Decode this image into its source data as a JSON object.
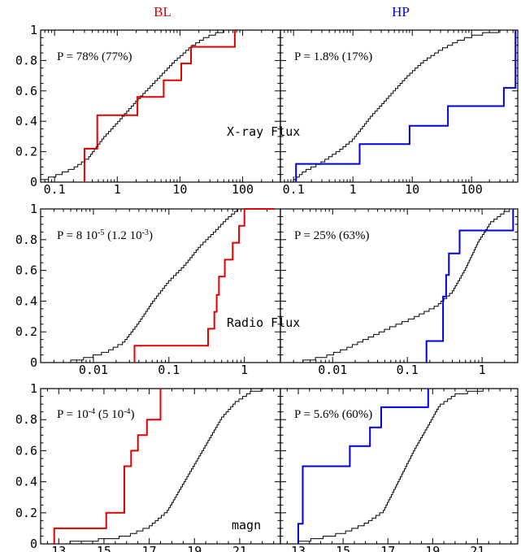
{
  "column_titles": [
    {
      "text": "BL",
      "color": "#e00000"
    },
    {
      "text": "HP",
      "color": "#0000e0"
    }
  ],
  "row_labels": [
    "X-ray Flux",
    "Radio Flux",
    "magn"
  ],
  "colors": {
    "sample": "#000000",
    "BL": "#e00000",
    "HP": "#0000e0"
  },
  "chart_data": [
    {
      "type": "line",
      "panel": "X-ray Flux / BL",
      "xscale": "log",
      "xlim": [
        0.06,
        400
      ],
      "ylim": [
        0,
        1
      ],
      "xticks": [
        {
          "v": 0.1,
          "label": "0.1"
        },
        {
          "v": 1,
          "label": "1"
        },
        {
          "v": 10,
          "label": "10"
        },
        {
          "v": 100,
          "label": "100"
        }
      ],
      "yticks": [
        "0",
        "0.2",
        "0.4",
        "0.6",
        "0.8",
        "1"
      ],
      "annotation": [
        {
          "text": "P = 78% (77%)"
        }
      ],
      "series": [
        {
          "kind": "cdf",
          "color": "#000000",
          "points": [
            [
              0.06,
              0
            ],
            [
              0.1,
              0.03
            ],
            [
              0.2,
              0.08
            ],
            [
              0.35,
              0.15
            ],
            [
              0.6,
              0.28
            ],
            [
              1,
              0.38
            ],
            [
              2,
              0.52
            ],
            [
              4,
              0.65
            ],
            [
              8,
              0.78
            ],
            [
              15,
              0.88
            ],
            [
              25,
              0.94
            ],
            [
              45,
              0.98
            ],
            [
              75,
              1
            ]
          ]
        },
        {
          "kind": "step",
          "color": "#e00000",
          "points": [
            [
              0.3,
              0
            ],
            [
              0.3,
              0.22
            ],
            [
              0.48,
              0.22
            ],
            [
              0.48,
              0.44
            ],
            [
              2.1,
              0.44
            ],
            [
              2.1,
              0.56
            ],
            [
              5.5,
              0.56
            ],
            [
              5.5,
              0.67
            ],
            [
              10.5,
              0.67
            ],
            [
              10.5,
              0.78
            ],
            [
              15,
              0.78
            ],
            [
              15,
              0.89
            ],
            [
              75,
              0.89
            ],
            [
              75,
              1
            ]
          ]
        }
      ]
    },
    {
      "type": "line",
      "panel": "X-ray Flux / HP",
      "xscale": "log",
      "xlim": [
        0.06,
        600
      ],
      "ylim": [
        0,
        1
      ],
      "xticks": [
        {
          "v": 0.1,
          "label": "0.1"
        },
        {
          "v": 1,
          "label": "1"
        },
        {
          "v": 10,
          "label": "10"
        },
        {
          "v": 100,
          "label": "100"
        }
      ],
      "yticks": [],
      "annotation": [
        {
          "text": "P = 1.8% (17%)"
        }
      ],
      "series": [
        {
          "kind": "cdf",
          "color": "#000000",
          "points": [
            [
              0.1,
              0
            ],
            [
              0.15,
              0.06
            ],
            [
              0.3,
              0.12
            ],
            [
              0.6,
              0.2
            ],
            [
              1,
              0.27
            ],
            [
              2,
              0.42
            ],
            [
              4,
              0.55
            ],
            [
              8,
              0.68
            ],
            [
              15,
              0.78
            ],
            [
              30,
              0.86
            ],
            [
              60,
              0.92
            ],
            [
              120,
              0.96
            ],
            [
              250,
              0.98
            ],
            [
              550,
              1
            ]
          ]
        },
        {
          "kind": "step",
          "color": "#0000e0",
          "points": [
            [
              0.11,
              0
            ],
            [
              0.11,
              0.12
            ],
            [
              1.3,
              0.12
            ],
            [
              1.3,
              0.25
            ],
            [
              9,
              0.25
            ],
            [
              9,
              0.37
            ],
            [
              40,
              0.37
            ],
            [
              40,
              0.5
            ],
            [
              350,
              0.5
            ],
            [
              350,
              0.62
            ],
            [
              550,
              0.62
            ],
            [
              550,
              1
            ]
          ]
        }
      ]
    },
    {
      "type": "line",
      "panel": "Radio Flux / BL",
      "xscale": "log",
      "xlim": [
        0.002,
        3
      ],
      "ylim": [
        0,
        1
      ],
      "xticks": [
        {
          "v": 0.01,
          "label": "0.01"
        },
        {
          "v": 0.1,
          "label": "0.1"
        },
        {
          "v": 1,
          "label": "1"
        }
      ],
      "yticks": [
        "0",
        "0.2",
        "0.4",
        "0.6",
        "0.8",
        "1"
      ],
      "annotation": [
        {
          "text": "P = 8 10",
          "sup": "-5"
        },
        {
          "text": " (1.2 10",
          "sup": "-3"
        },
        {
          "text": ")"
        }
      ],
      "series": [
        {
          "kind": "cdf",
          "color": "#000000",
          "points": [
            [
              0.005,
              0
            ],
            [
              0.008,
              0.02
            ],
            [
              0.015,
              0.06
            ],
            [
              0.025,
              0.12
            ],
            [
              0.04,
              0.25
            ],
            [
              0.06,
              0.38
            ],
            [
              0.1,
              0.52
            ],
            [
              0.16,
              0.62
            ],
            [
              0.25,
              0.74
            ],
            [
              0.4,
              0.84
            ],
            [
              0.6,
              0.93
            ],
            [
              0.85,
              0.99
            ],
            [
              1.1,
              1
            ]
          ]
        },
        {
          "kind": "step",
          "color": "#e00000",
          "points": [
            [
              0.035,
              0
            ],
            [
              0.035,
              0.11
            ],
            [
              0.33,
              0.11
            ],
            [
              0.33,
              0.22
            ],
            [
              0.4,
              0.22
            ],
            [
              0.4,
              0.33
            ],
            [
              0.43,
              0.33
            ],
            [
              0.43,
              0.44
            ],
            [
              0.46,
              0.44
            ],
            [
              0.46,
              0.56
            ],
            [
              0.55,
              0.56
            ],
            [
              0.55,
              0.67
            ],
            [
              0.7,
              0.67
            ],
            [
              0.7,
              0.78
            ],
            [
              0.85,
              0.78
            ],
            [
              0.85,
              0.89
            ],
            [
              1.0,
              0.89
            ],
            [
              1.0,
              1
            ],
            [
              2.5,
              1
            ]
          ]
        }
      ]
    },
    {
      "type": "line",
      "panel": "Radio Flux / HP",
      "xscale": "log",
      "xlim": [
        0.002,
        3
      ],
      "ylim": [
        0,
        1
      ],
      "xticks": [
        {
          "v": 0.01,
          "label": "0.01"
        },
        {
          "v": 0.1,
          "label": "0.1"
        },
        {
          "v": 1,
          "label": "1"
        }
      ],
      "yticks": [],
      "annotation": [
        {
          "text": "P = 25% (63%)"
        }
      ],
      "series": [
        {
          "kind": "cdf",
          "color": "#000000",
          "points": [
            [
              0.004,
              0
            ],
            [
              0.008,
              0.03
            ],
            [
              0.015,
              0.08
            ],
            [
              0.03,
              0.15
            ],
            [
              0.06,
              0.22
            ],
            [
              0.12,
              0.28
            ],
            [
              0.25,
              0.36
            ],
            [
              0.4,
              0.45
            ],
            [
              0.6,
              0.6
            ],
            [
              0.9,
              0.78
            ],
            [
              1.3,
              0.9
            ],
            [
              2,
              0.97
            ],
            [
              2.8,
              1
            ]
          ]
        },
        {
          "kind": "step",
          "color": "#0000e0",
          "points": [
            [
              0.18,
              0
            ],
            [
              0.18,
              0.14
            ],
            [
              0.3,
              0.14
            ],
            [
              0.3,
              0.43
            ],
            [
              0.33,
              0.43
            ],
            [
              0.33,
              0.57
            ],
            [
              0.36,
              0.57
            ],
            [
              0.36,
              0.71
            ],
            [
              0.5,
              0.71
            ],
            [
              0.5,
              0.86
            ],
            [
              2.6,
              0.86
            ],
            [
              2.6,
              1
            ]
          ]
        }
      ]
    },
    {
      "type": "line",
      "panel": "magn / BL",
      "xscale": "linear",
      "xlim": [
        12.2,
        22.8
      ],
      "ylim": [
        0,
        1
      ],
      "xticks": [
        {
          "v": 13,
          "label": "13"
        },
        {
          "v": 15,
          "label": "15"
        },
        {
          "v": 17,
          "label": "17"
        },
        {
          "v": 19,
          "label": "19"
        },
        {
          "v": 21,
          "label": "21"
        }
      ],
      "yticks": [
        "0",
        "0.2",
        "0.4",
        "0.6",
        "0.8",
        "1"
      ],
      "annotation": [
        {
          "text": "P = 10",
          "sup": "-4"
        },
        {
          "text": " (5 10",
          "sup": "-4"
        },
        {
          "text": ")"
        }
      ],
      "series": [
        {
          "kind": "cdf",
          "color": "#000000",
          "points": [
            [
              13.5,
              0
            ],
            [
              15,
              0.02
            ],
            [
              16,
              0.04
            ],
            [
              17,
              0.1
            ],
            [
              17.8,
              0.2
            ],
            [
              18.4,
              0.35
            ],
            [
              19,
              0.5
            ],
            [
              19.6,
              0.65
            ],
            [
              20.2,
              0.8
            ],
            [
              20.8,
              0.9
            ],
            [
              21.5,
              0.97
            ],
            [
              22.5,
              1
            ]
          ]
        },
        {
          "kind": "step",
          "color": "#e00000",
          "points": [
            [
              12.8,
              0
            ],
            [
              12.8,
              0.1
            ],
            [
              15.1,
              0.1
            ],
            [
              15.1,
              0.2
            ],
            [
              15.9,
              0.2
            ],
            [
              15.9,
              0.5
            ],
            [
              16.2,
              0.5
            ],
            [
              16.2,
              0.6
            ],
            [
              16.5,
              0.6
            ],
            [
              16.5,
              0.7
            ],
            [
              16.9,
              0.7
            ],
            [
              16.9,
              0.8
            ],
            [
              17.5,
              0.8
            ],
            [
              17.5,
              1
            ]
          ]
        }
      ]
    },
    {
      "type": "line",
      "panel": "magn / HP",
      "xscale": "linear",
      "xlim": [
        12.2,
        22.8
      ],
      "ylim": [
        0,
        1
      ],
      "xticks": [
        {
          "v": 13,
          "label": "13"
        },
        {
          "v": 15,
          "label": "15"
        },
        {
          "v": 17,
          "label": "17"
        },
        {
          "v": 19,
          "label": "19"
        },
        {
          "v": 21,
          "label": "21"
        }
      ],
      "yticks": [],
      "annotation": [
        {
          "text": "P = 5.6% (60%)"
        }
      ],
      "series": [
        {
          "kind": "cdf",
          "color": "#000000",
          "points": [
            [
              13,
              0
            ],
            [
              14,
              0.03
            ],
            [
              15,
              0.06
            ],
            [
              16,
              0.12
            ],
            [
              16.8,
              0.2
            ],
            [
              17.5,
              0.4
            ],
            [
              18.2,
              0.6
            ],
            [
              18.8,
              0.75
            ],
            [
              19.3,
              0.88
            ],
            [
              20,
              0.95
            ],
            [
              21,
              0.98
            ],
            [
              22.5,
              1
            ]
          ]
        },
        {
          "kind": "step",
          "color": "#0000e0",
          "points": [
            [
              13.0,
              0
            ],
            [
              13.0,
              0.13
            ],
            [
              13.2,
              0.13
            ],
            [
              13.2,
              0.5
            ],
            [
              15.3,
              0.5
            ],
            [
              15.3,
              0.63
            ],
            [
              16.2,
              0.63
            ],
            [
              16.2,
              0.75
            ],
            [
              16.7,
              0.75
            ],
            [
              16.7,
              0.88
            ],
            [
              18.8,
              0.88
            ],
            [
              18.8,
              1
            ]
          ]
        }
      ]
    }
  ]
}
